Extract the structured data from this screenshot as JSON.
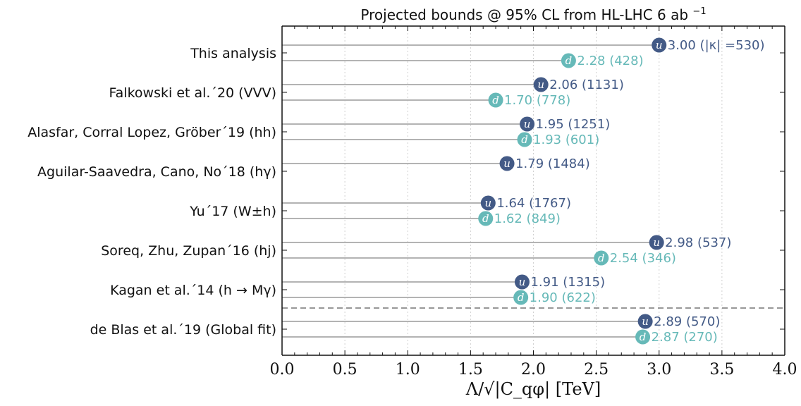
{
  "chart_data": {
    "type": "lollipop-horizontal",
    "title": "Projected bounds @ 95% CL from HL-LHC 6 ab",
    "title_sup": "−1",
    "xlabel": "Λ/√|C_qφ| [TeV]",
    "xlim": [
      0.0,
      4.0
    ],
    "xticks": [
      "0.0",
      "0.5",
      "1.0",
      "1.5",
      "2.0",
      "2.5",
      "3.0",
      "3.5",
      "4.0"
    ],
    "xtick_values": [
      0.0,
      0.5,
      1.0,
      1.5,
      2.0,
      2.5,
      3.0,
      3.5,
      4.0
    ],
    "grid": "vertical dotted",
    "colors": {
      "u": "#435a86",
      "d": "#66b9b8",
      "stem": "#b3b3b3",
      "separator": "#777777"
    },
    "rows": [
      {
        "label": "This analysis",
        "entries": [
          {
            "flavor": "u",
            "value": 3.0,
            "text": "3.00 (|κ| =530)"
          },
          {
            "flavor": "d",
            "value": 2.28,
            "text": "2.28 (428)"
          }
        ]
      },
      {
        "label": "Falkowski et al.´20 (VVV)",
        "entries": [
          {
            "flavor": "u",
            "value": 2.06,
            "text": "2.06 (1131)"
          },
          {
            "flavor": "d",
            "value": 1.7,
            "text": "1.70 (778)"
          }
        ]
      },
      {
        "label": "Alasfar, Corral Lopez, Gröber´19 (hh)",
        "entries": [
          {
            "flavor": "u",
            "value": 1.95,
            "text": "1.95 (1251)"
          },
          {
            "flavor": "d",
            "value": 1.93,
            "text": "1.93 (601)"
          }
        ]
      },
      {
        "label": "Aguilar-Saavedra, Cano, No´18 (hγ)",
        "entries": [
          {
            "flavor": "u",
            "value": 1.79,
            "text": "1.79 (1484)"
          }
        ]
      },
      {
        "label": "Yu´17 (W±h)",
        "entries": [
          {
            "flavor": "u",
            "value": 1.64,
            "text": "1.64 (1767)"
          },
          {
            "flavor": "d",
            "value": 1.62,
            "text": "1.62 (849)"
          }
        ]
      },
      {
        "label": "Soreq, Zhu, Zupan´16 (hj)",
        "entries": [
          {
            "flavor": "u",
            "value": 2.98,
            "text": "2.98 (537)"
          },
          {
            "flavor": "d",
            "value": 2.54,
            "text": "2.54 (346)"
          }
        ]
      },
      {
        "label": "Kagan et al.´14 (h → Mγ)",
        "entries": [
          {
            "flavor": "u",
            "value": 1.91,
            "text": "1.91 (1315)"
          },
          {
            "flavor": "d",
            "value": 1.9,
            "text": "1.90 (622)"
          }
        ]
      },
      {
        "label": "de Blas et al.´19 (Global fit)",
        "entries": [
          {
            "flavor": "u",
            "value": 2.89,
            "text": "2.89 (570)"
          },
          {
            "flavor": "d",
            "value": 2.87,
            "text": "2.87 (270)"
          }
        ]
      }
    ]
  }
}
